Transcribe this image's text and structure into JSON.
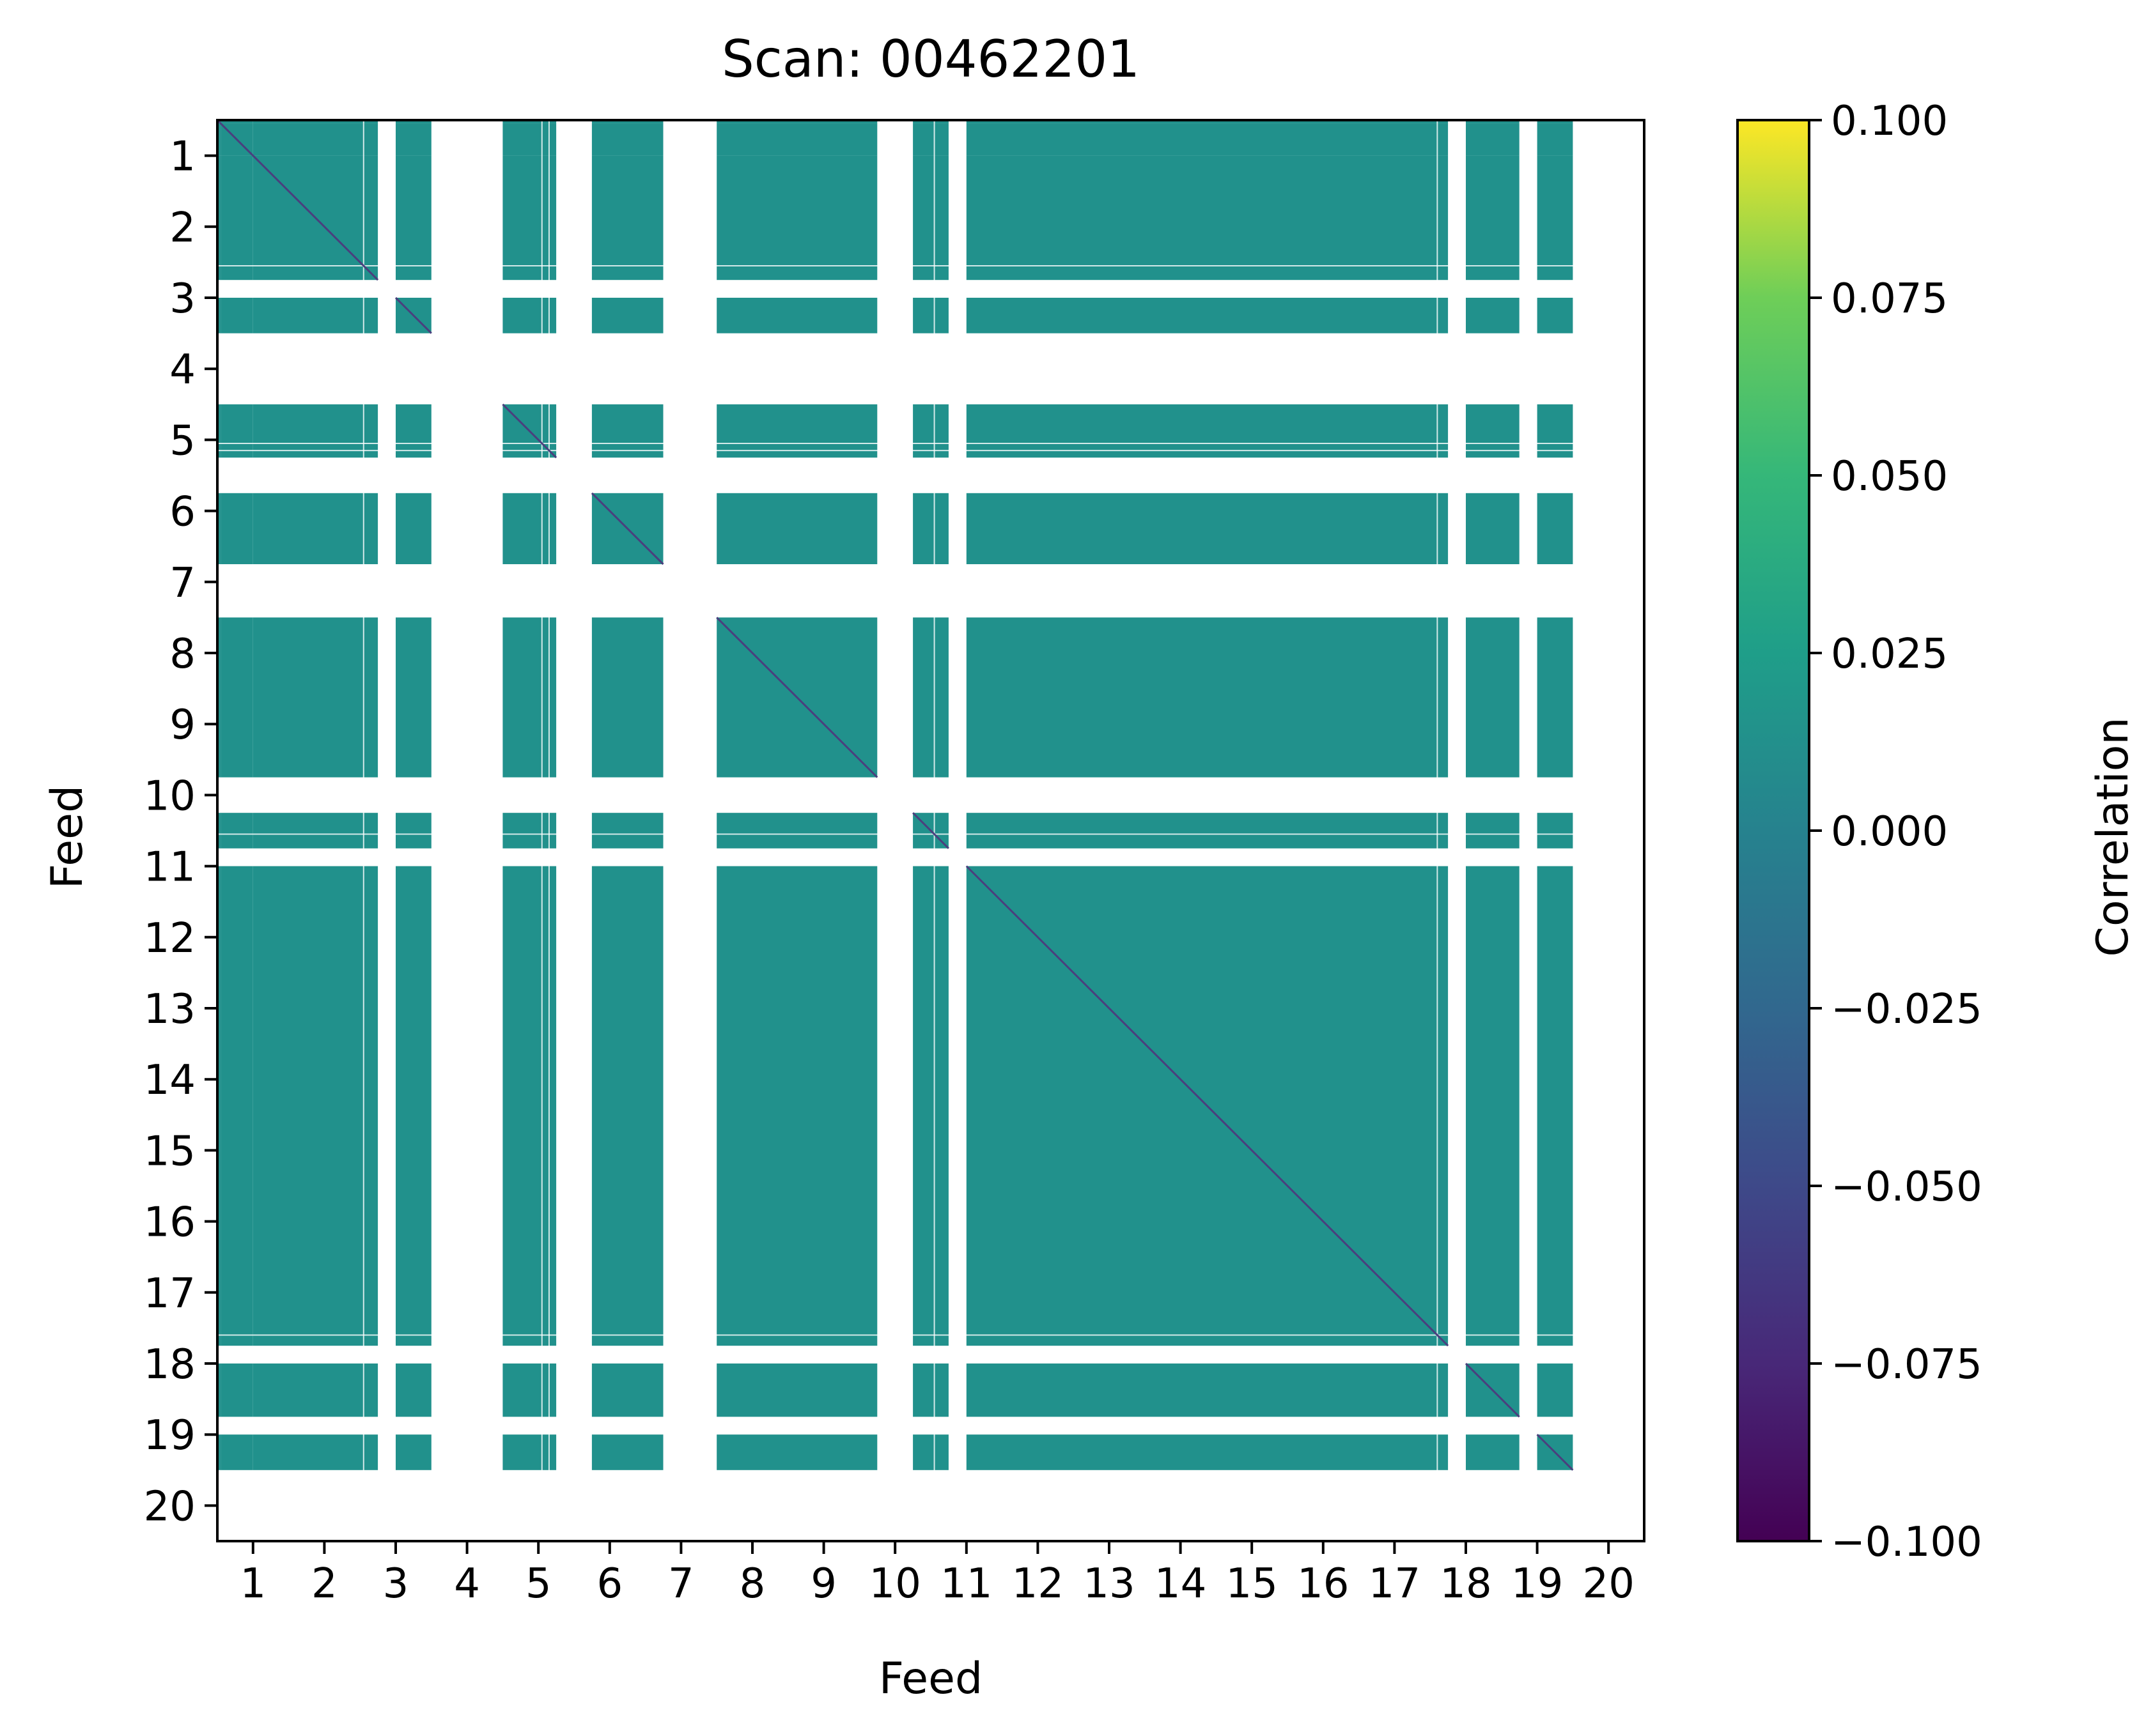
{
  "chart_data": {
    "type": "heatmap",
    "title": "Scan: 00462201",
    "xlabel": "Feed",
    "ylabel": "Feed",
    "x_ticks": [
      "1",
      "2",
      "3",
      "4",
      "5",
      "6",
      "7",
      "8",
      "9",
      "10",
      "11",
      "12",
      "13",
      "14",
      "15",
      "16",
      "17",
      "18",
      "19",
      "20"
    ],
    "y_ticks": [
      "1",
      "2",
      "3",
      "4",
      "5",
      "6",
      "7",
      "8",
      "9",
      "10",
      "11",
      "12",
      "13",
      "14",
      "15",
      "16",
      "17",
      "18",
      "19",
      "20"
    ],
    "xlim": [
      0.5,
      20.5
    ],
    "ylim": [
      20.5,
      0.5
    ],
    "colorbar": {
      "label": "Correlation",
      "colormap": "viridis",
      "range": [
        -0.1,
        0.1
      ],
      "ticks": [
        "0.100",
        "0.075",
        "0.050",
        "0.025",
        "0.000",
        "−0.025",
        "−0.050",
        "−0.075",
        "−0.100"
      ],
      "tick_values": [
        0.1,
        0.075,
        0.05,
        0.025,
        0.0,
        -0.025,
        -0.05,
        -0.075,
        -0.1
      ]
    },
    "fill_color": "#21918c",
    "diagonal_color": "#4a3f7e",
    "valid_feed_ranges": [
      [
        0.5,
        0.55
      ],
      [
        0.55,
        1.0
      ],
      [
        1.0,
        2.75
      ],
      [
        3.0,
        3.5
      ],
      [
        4.5,
        5.25
      ],
      [
        5.75,
        6.75
      ],
      [
        7.5,
        9.75
      ],
      [
        10.25,
        10.75
      ],
      [
        11.0,
        17.75
      ],
      [
        18.0,
        18.75
      ],
      [
        19.0,
        19.5
      ]
    ],
    "gap_lines": [
      2.55,
      5.05,
      5.15,
      10.55,
      17.6
    ],
    "value_estimate": 0.0
  }
}
